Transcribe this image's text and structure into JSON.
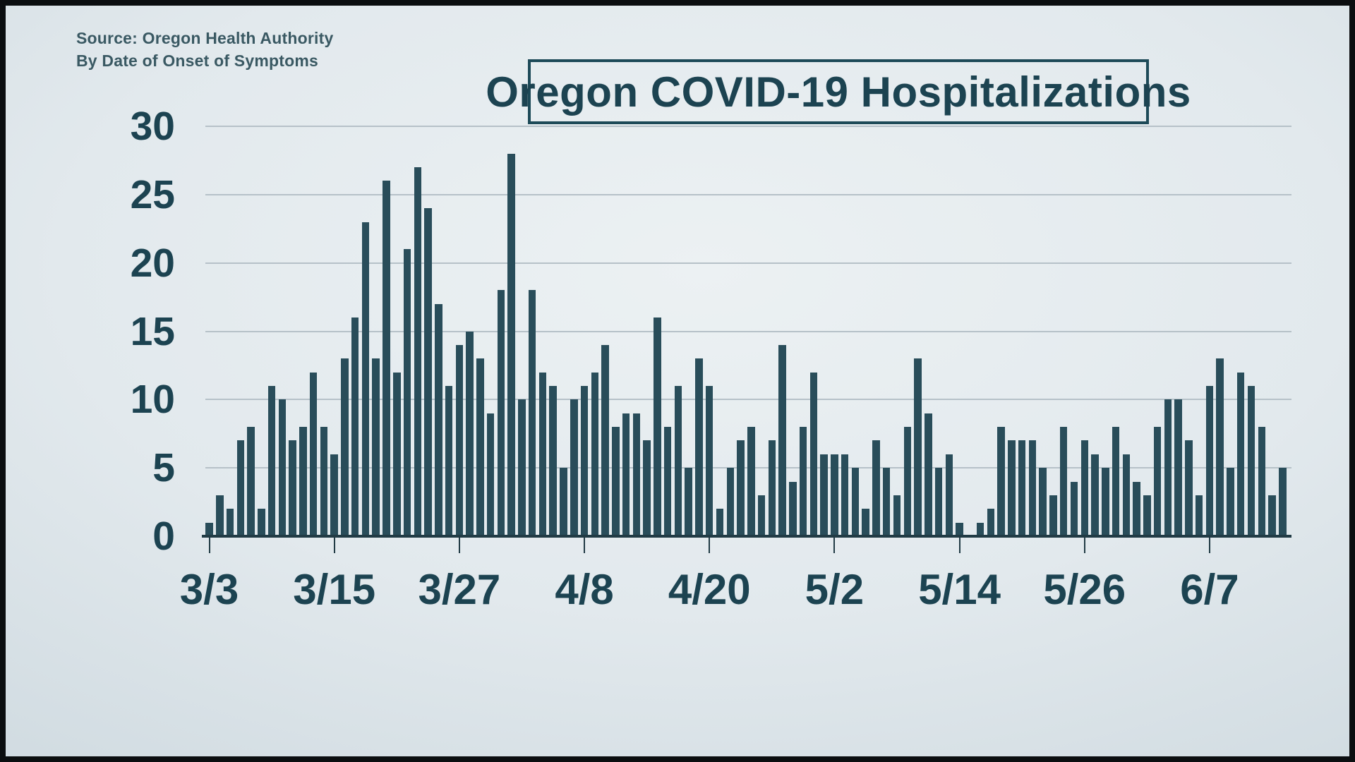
{
  "source_note": {
    "line1": "Source: Oregon Health Authority",
    "line2": "By Date of Onset of Symptoms"
  },
  "title": "Oregon COVID-19 Hospitalizations",
  "colors": {
    "bar": "#294d5a",
    "text": "#1c4351",
    "gridline": "#b6c1c8",
    "axis": "#213b45",
    "title_box_border": "#1d4a58",
    "background_center": "#ecf1f3",
    "background_edge": "#bccad2",
    "frame_border": "#0b0e10"
  },
  "chart_data": {
    "type": "bar",
    "title": "Oregon COVID-19 Hospitalizations",
    "xlabel": "",
    "ylabel": "",
    "ylim": [
      0,
      30
    ],
    "grid": true,
    "legend": false,
    "y_ticks": [
      0,
      5,
      10,
      15,
      20,
      25,
      30
    ],
    "x_tick_labels": [
      "3/3",
      "3/15",
      "3/27",
      "4/8",
      "4/20",
      "5/2",
      "5/14",
      "5/26",
      "6/7"
    ],
    "x_tick_day_indices": [
      0,
      12,
      24,
      36,
      48,
      60,
      72,
      84,
      96
    ],
    "categories": [
      "3/3",
      "3/4",
      "3/5",
      "3/6",
      "3/7",
      "3/8",
      "3/9",
      "3/10",
      "3/11",
      "3/12",
      "3/13",
      "3/14",
      "3/15",
      "3/16",
      "3/17",
      "3/18",
      "3/19",
      "3/20",
      "3/21",
      "3/22",
      "3/23",
      "3/24",
      "3/25",
      "3/26",
      "3/27",
      "3/28",
      "3/29",
      "3/30",
      "3/31",
      "4/1",
      "4/2",
      "4/3",
      "4/4",
      "4/5",
      "4/6",
      "4/7",
      "4/8",
      "4/9",
      "4/10",
      "4/11",
      "4/12",
      "4/13",
      "4/14",
      "4/15",
      "4/16",
      "4/17",
      "4/18",
      "4/19",
      "4/20",
      "4/21",
      "4/22",
      "4/23",
      "4/24",
      "4/25",
      "4/26",
      "4/27",
      "4/28",
      "4/29",
      "4/30",
      "5/1",
      "5/2",
      "5/3",
      "5/4",
      "5/5",
      "5/6",
      "5/7",
      "5/8",
      "5/9",
      "5/10",
      "5/11",
      "5/12",
      "5/13",
      "5/14",
      "5/15",
      "5/16",
      "5/17",
      "5/18",
      "5/19",
      "5/20",
      "5/21",
      "5/22",
      "5/23",
      "5/24",
      "5/25",
      "5/26",
      "5/27",
      "5/28",
      "5/29",
      "5/30",
      "5/31",
      "6/1",
      "6/2",
      "6/3",
      "6/4",
      "6/5",
      "6/6",
      "6/7",
      "6/8",
      "6/9",
      "6/10",
      "6/11",
      "6/12",
      "6/13",
      "6/14"
    ],
    "values": [
      1,
      3,
      2,
      7,
      8,
      2,
      11,
      10,
      7,
      8,
      12,
      8,
      6,
      13,
      16,
      23,
      13,
      26,
      12,
      21,
      27,
      24,
      17,
      11,
      14,
      15,
      13,
      9,
      18,
      28,
      10,
      18,
      12,
      11,
      5,
      10,
      11,
      12,
      14,
      8,
      9,
      9,
      7,
      16,
      8,
      11,
      5,
      13,
      11,
      2,
      5,
      7,
      8,
      3,
      7,
      14,
      4,
      8,
      12,
      6,
      6,
      6,
      5,
      2,
      7,
      5,
      3,
      8,
      13,
      9,
      5,
      6,
      1,
      0,
      1,
      2,
      8,
      7,
      7,
      7,
      5,
      3,
      8,
      4,
      7,
      6,
      5,
      8,
      6,
      4,
      3,
      8,
      10,
      10,
      7,
      3,
      11,
      13,
      5,
      12,
      11,
      8,
      3,
      5
    ]
  }
}
